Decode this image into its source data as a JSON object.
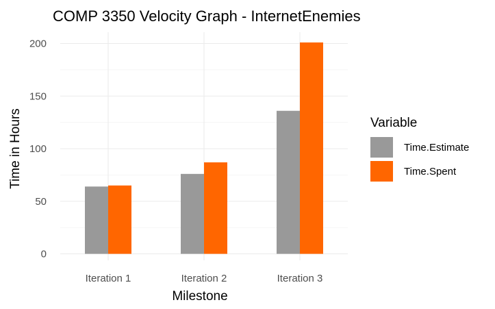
{
  "chart_data": {
    "type": "bar",
    "title": "COMP 3350 Velocity Graph - InternetEnemies",
    "xlabel": "Milestone",
    "ylabel": "Time in Hours",
    "categories": [
      "Iteration 1",
      "Iteration 2",
      "Iteration 3"
    ],
    "series": [
      {
        "name": "Time.Estimate",
        "values": [
          64,
          76,
          136
        ],
        "color": "#999999"
      },
      {
        "name": "Time.Spent",
        "values": [
          65,
          87,
          201
        ],
        "color": "#ff6600"
      }
    ],
    "ylim": [
      0,
      210
    ],
    "yticks": [
      0,
      50,
      100,
      150,
      200
    ],
    "grid": true,
    "legend": {
      "title": "Variable",
      "position": "right"
    }
  }
}
